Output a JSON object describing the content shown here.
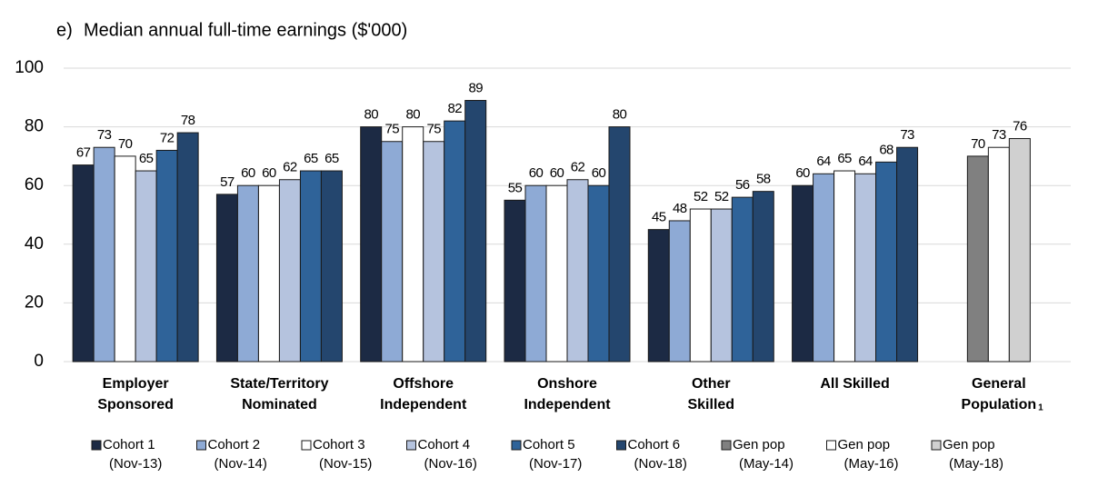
{
  "chart_data": {
    "type": "bar",
    "panel_label": "e)",
    "title": "Median annual full-time earnings ($'000)",
    "categories": [
      [
        "Employer",
        "Sponsored"
      ],
      [
        "State/Territory",
        "Nominated"
      ],
      [
        "Offshore",
        "Independent"
      ],
      [
        "Onshore",
        "Independent"
      ],
      [
        "Other",
        "Skilled"
      ],
      [
        "All Skilled"
      ],
      [
        "General",
        "Population"
      ]
    ],
    "category_notes": [
      null,
      null,
      null,
      null,
      null,
      null,
      "1"
    ],
    "series": [
      {
        "name": [
          "Cohort 1",
          "(Nov-13)"
        ],
        "color": "#1c2a44",
        "values": [
          67,
          57,
          80,
          55,
          45,
          60,
          null
        ]
      },
      {
        "name": [
          "Cohort 2",
          "(Nov-14)"
        ],
        "color": "#8eaad5",
        "values": [
          73,
          60,
          75,
          60,
          48,
          64,
          null
        ]
      },
      {
        "name": [
          "Cohort 3",
          "(Nov-15)"
        ],
        "color": "#ffffff",
        "values": [
          70,
          60,
          80,
          60,
          52,
          65,
          null
        ]
      },
      {
        "name": [
          "Cohort 4",
          "(Nov-16)"
        ],
        "color": "#b5c3de",
        "values": [
          65,
          62,
          75,
          62,
          52,
          64,
          null
        ]
      },
      {
        "name": [
          "Cohort 5",
          "(Nov-17)"
        ],
        "color": "#2f6399",
        "values": [
          72,
          65,
          82,
          60,
          56,
          68,
          null
        ]
      },
      {
        "name": [
          "Cohort 6",
          "(Nov-18)"
        ],
        "color": "#24466e",
        "values": [
          78,
          65,
          89,
          80,
          58,
          73,
          null
        ]
      },
      {
        "name": [
          "Gen pop",
          "(May-14)"
        ],
        "color": "#808080",
        "values": [
          null,
          null,
          null,
          null,
          null,
          null,
          70
        ]
      },
      {
        "name": [
          "Gen pop",
          "(May-16)"
        ],
        "color": "#ffffff",
        "values": [
          null,
          null,
          null,
          null,
          null,
          null,
          73
        ]
      },
      {
        "name": [
          "Gen pop",
          "(May-18)"
        ],
        "color": "#d0d0d0",
        "values": [
          null,
          null,
          null,
          null,
          null,
          null,
          76
        ]
      }
    ],
    "ylim": [
      0,
      100
    ],
    "yticks": [
      0,
      20,
      40,
      60,
      80,
      100
    ],
    "grid": true
  }
}
